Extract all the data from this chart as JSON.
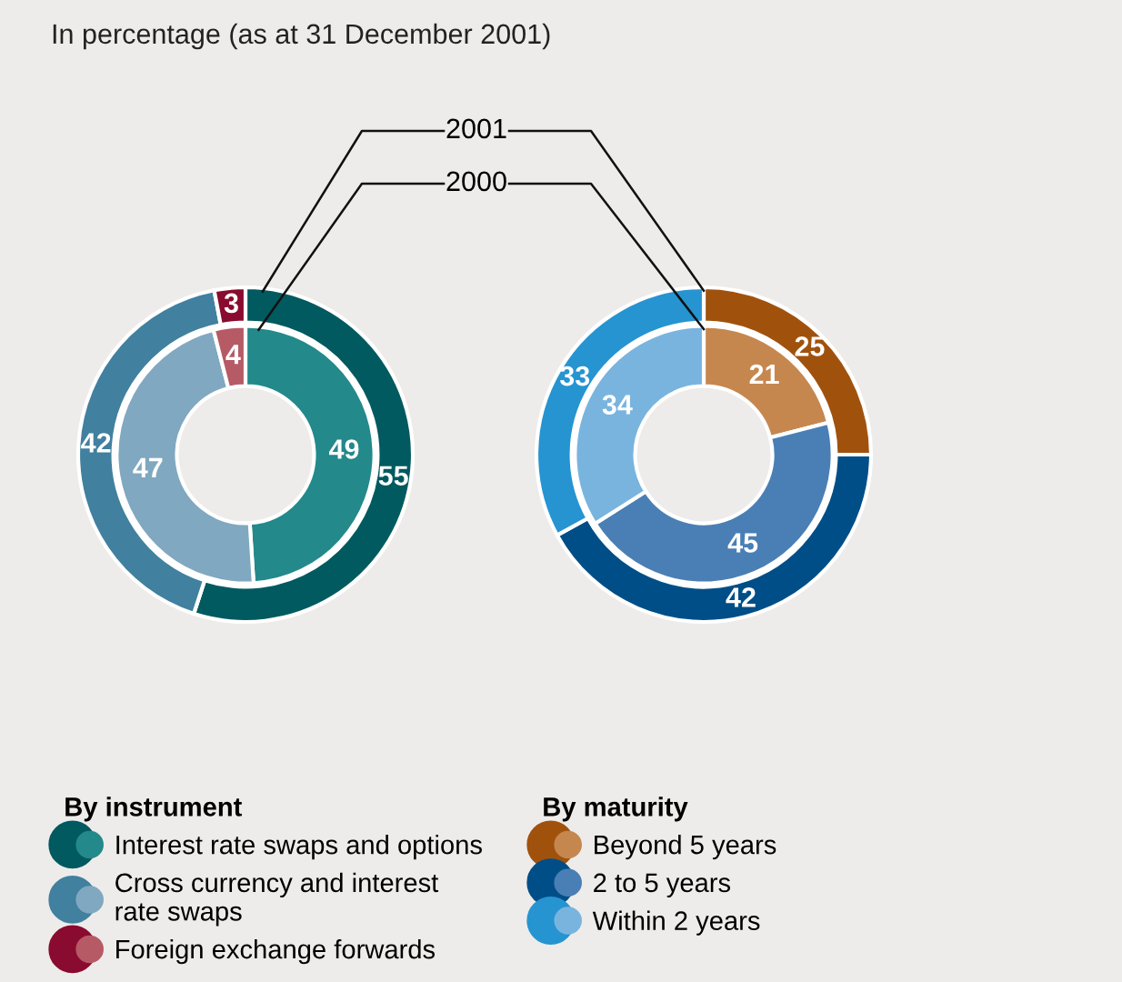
{
  "chart_data": [
    {
      "type": "donut",
      "title": "In percentage (as at 31 December 2001)",
      "legend_title": "By instrument",
      "legend": "bottom",
      "data_labels": true,
      "categories": [
        "Interest rate swaps and options",
        "Cross currency and interest\nrate swaps",
        "Foreign exchange forwards"
      ],
      "series": [
        {
          "name": "2001",
          "values": [
            55,
            42,
            3
          ],
          "colors": [
            "#005a5f",
            "#41809f",
            "#8a0b30"
          ]
        },
        {
          "name": "2000",
          "values": [
            49,
            47,
            4
          ],
          "colors": [
            "#23898b",
            "#80a8c0",
            "#b65a66"
          ]
        }
      ]
    },
    {
      "type": "donut",
      "legend_title": "By maturity",
      "legend": "bottom",
      "data_labels": true,
      "categories": [
        "Beyond 5 years",
        "2 to 5 years",
        "Within 2 years"
      ],
      "series": [
        {
          "values": [
            25,
            42,
            33
          ],
          "colors": [
            "#a0520d",
            "#004e87",
            "#2694d1"
          ]
        },
        {
          "values": [
            21,
            45,
            34
          ],
          "colors": [
            "#c6874f",
            "#4a7fb5",
            "#79b4df"
          ]
        }
      ]
    }
  ]
}
